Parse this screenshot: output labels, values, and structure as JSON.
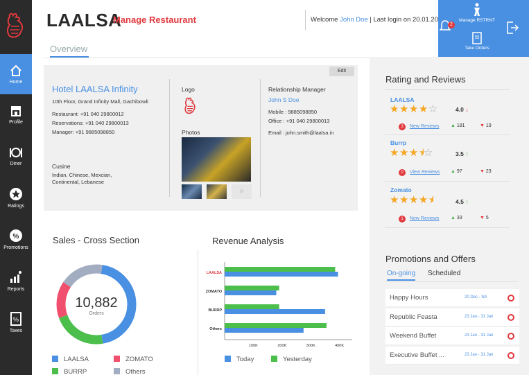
{
  "brand": {
    "name": "LAALSA",
    "subtitle": "Manage Restaurant"
  },
  "header": {
    "welcome_prefix": "Welcome",
    "user": "John Doe",
    "last_login": "| Last login on 20.01.2016",
    "notifications": "2",
    "manage_label": "Manage RSTRNT",
    "take_orders_label": "Take Orders"
  },
  "tabs": {
    "overview": "Overview"
  },
  "sidebar": {
    "items": [
      {
        "label": "Home",
        "icon": "home-icon"
      },
      {
        "label": "Profile",
        "icon": "store-icon"
      },
      {
        "label": "Diner",
        "icon": "dish-icon"
      },
      {
        "label": "Ratings",
        "icon": "star-icon"
      },
      {
        "label": "Promotions",
        "icon": "percent-icon"
      },
      {
        "label": "Reports",
        "icon": "chart-icon"
      },
      {
        "label": "Taxes",
        "icon": "tax-icon"
      }
    ]
  },
  "hotel": {
    "edit": "Edit",
    "name": "Hotel LAALSA Infinity",
    "address": "10th Floor, Grand Infinity Mall, Gachibowli",
    "restaurant": "Restaurant: +91 040 29800012",
    "reservations": "Reservations: +91 040 29800013",
    "manager": "Manager: +91 9885098850",
    "cusine_label": "Cusine",
    "cusine": "Indian, Chinese, Mexcian,",
    "cusine2": "Continental, Lebanese",
    "logo_label": "Logo",
    "photos_label": "Photos",
    "rm_label": "Relationship Manager",
    "rm_name": "John S Doe",
    "rm_mobile": "Mobile : 9885098850",
    "rm_office": "Office : +91 040 29800013",
    "rm_email": "Email : john.smith@laalsa.in"
  },
  "ratings": {
    "title": "Rating and Reviews",
    "items": [
      {
        "name": "LAALSA",
        "score": "4.0",
        "trend": "↓",
        "badge": "3",
        "link": "New Reviews",
        "up": "181",
        "down": "19",
        "stars": 4
      },
      {
        "name": "Burrp",
        "score": "3.5",
        "trend": "↑",
        "badge": "0",
        "link": "View Reviews",
        "up": "97",
        "down": "23",
        "stars": 3.5
      },
      {
        "name": "Zomato",
        "score": "4.5",
        "trend": "↑",
        "badge": "1",
        "link": "New Reviews",
        "up": "33",
        "down": "5",
        "stars": 4.5
      }
    ]
  },
  "promotions": {
    "title": "Promotions and Offers",
    "tab_ongoing": "On-going",
    "tab_scheduled": "Scheduled",
    "items": [
      {
        "name": "Happy Hours",
        "date": "20 Dec - NA"
      },
      {
        "name": "Republic Feasta",
        "date": "23 Jan - 31 Jan"
      },
      {
        "name": "Weekend Buffet",
        "date": "23 Jan - 31 Jan"
      },
      {
        "name": "Executive Buffet ...",
        "date": "23 Jan - 31 Jan"
      }
    ]
  },
  "sales": {
    "title": "Sales - Cross Section",
    "center_value": "10,882",
    "center_label": "Orders",
    "legend": [
      {
        "name": "LAALSA",
        "color": "#4a90e2"
      },
      {
        "name": "ZOMATO",
        "color": "#f0506e"
      },
      {
        "name": "BURRP",
        "color": "#4cbe4c"
      },
      {
        "name": "Others",
        "color": "#a3adc2"
      }
    ]
  },
  "revenue": {
    "title": "Revenue Analysis",
    "legend_today": "Today",
    "legend_yesterday": "Yesterday"
  },
  "chart_data": [
    {
      "type": "pie",
      "title": "Sales - Cross Section",
      "categories": [
        "LAALSA",
        "ZOMATO",
        "BURRP",
        "Others"
      ],
      "values": [
        45,
        15,
        22,
        18
      ],
      "colors": [
        "#4a90e2",
        "#f0506e",
        "#4cbe4c",
        "#a3adc2"
      ]
    },
    {
      "type": "bar",
      "title": "Revenue Analysis",
      "categories": [
        "LAALSA",
        "ZOMATO",
        "BURRP",
        "Others"
      ],
      "series": [
        {
          "name": "Today",
          "values": [
            395000,
            180000,
            350000,
            275000
          ],
          "color": "#4a90e2"
        },
        {
          "name": "Yesterday",
          "values": [
            385000,
            190000,
            190000,
            355000
          ],
          "color": "#4cbe4c"
        }
      ],
      "xticks": [
        "100K",
        "200K",
        "300K",
        "400K"
      ],
      "xlim": [
        100000,
        400000
      ]
    }
  ]
}
